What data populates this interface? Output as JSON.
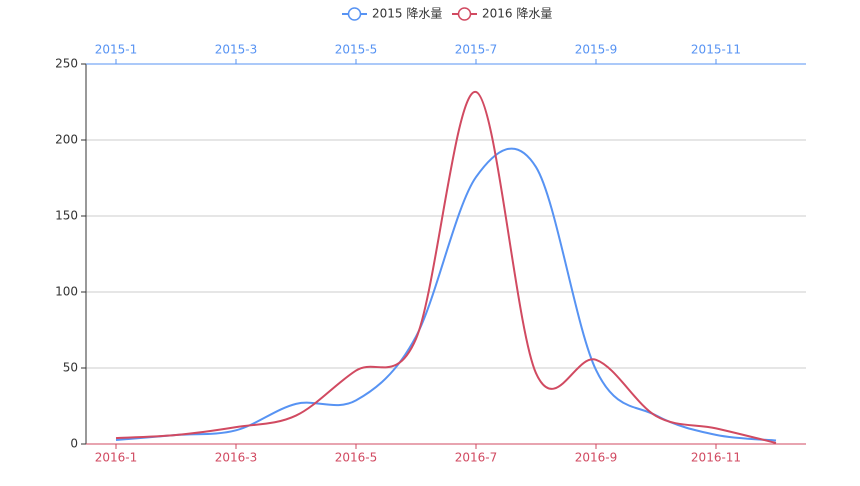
{
  "chart_data": {
    "type": "line",
    "x_top": {
      "color": "#5793f3",
      "categories": [
        "2015-1",
        null,
        "2015-3",
        null,
        "2015-5",
        null,
        "2015-7",
        null,
        "2015-9",
        null,
        "2015-11",
        null
      ]
    },
    "x_bottom": {
      "color": "#d14a61",
      "categories": [
        "2016-1",
        null,
        "2016-3",
        null,
        "2016-5",
        null,
        "2016-7",
        null,
        "2016-9",
        null,
        "2016-11",
        null
      ]
    },
    "series": [
      {
        "name": "2015 降水量",
        "color": "#5793f3",
        "axis": "top",
        "values": [
          2.6,
          5.9,
          9.0,
          26.4,
          28.7,
          70.7,
          175.6,
          182.2,
          48.7,
          18.8,
          6.0,
          2.3
        ]
      },
      {
        "name": "2016 降水量",
        "color": "#d14a61",
        "axis": "bottom",
        "values": [
          3.9,
          5.9,
          11.1,
          18.7,
          48.3,
          69.2,
          231.6,
          46.6,
          55.4,
          18.4,
          10.3,
          0.7
        ]
      }
    ],
    "ylim": [
      0,
      250
    ],
    "yticks": [
      0,
      50,
      100,
      150,
      200,
      250
    ],
    "grid": true
  }
}
